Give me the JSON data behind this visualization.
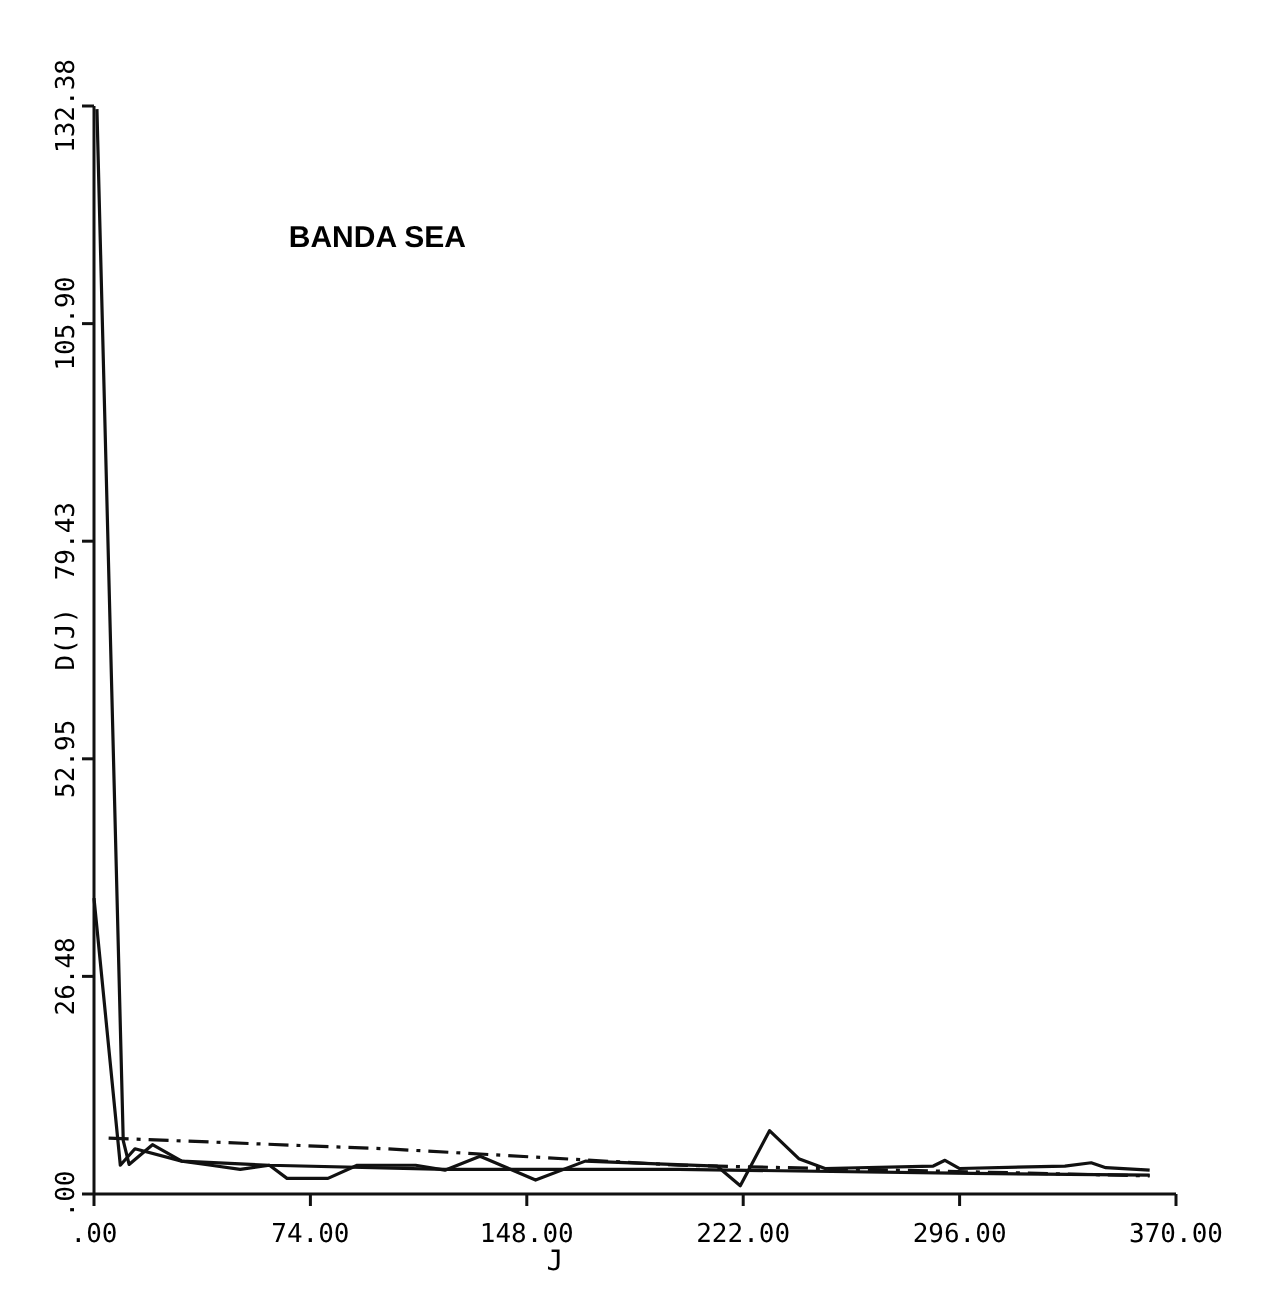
{
  "chart_data": {
    "type": "line",
    "title": "BANDA SEA",
    "xlabel": "J",
    "ylabel": "D(J)",
    "xlim": [
      0,
      370
    ],
    "ylim": [
      0,
      132.38
    ],
    "xticks": [
      {
        "value": 0,
        "label": ".00"
      },
      {
        "value": 74,
        "label": "74.00"
      },
      {
        "value": 148,
        "label": "148.00"
      },
      {
        "value": 222,
        "label": "222.00"
      },
      {
        "value": 296,
        "label": "296.00"
      },
      {
        "value": 370,
        "label": "370.00"
      }
    ],
    "yticks": [
      {
        "value": 0,
        "label": ".00"
      },
      {
        "value": 26.48,
        "label": "26.48"
      },
      {
        "value": 52.95,
        "label": "52.95"
      },
      {
        "value": 79.43,
        "label": "79.43"
      },
      {
        "value": 105.9,
        "label": "105.90"
      },
      {
        "value": 132.38,
        "label": "132.38"
      }
    ],
    "grid": false,
    "series": [
      {
        "color": "#111111",
        "line_style": "solid",
        "x": [
          1,
          10,
          12,
          20,
          30,
          40,
          50,
          60,
          66,
          80,
          90,
          110,
          120,
          132,
          151,
          168,
          213,
          221,
          231,
          241,
          250,
          287,
          291,
          296,
          332,
          341,
          346,
          361
        ],
        "values": [
          132,
          6.5,
          3.6,
          6,
          4,
          3.5,
          3,
          3.5,
          1.9,
          1.9,
          3.5,
          3.5,
          2.9,
          4.6,
          1.7,
          4,
          3.4,
          1,
          7.7,
          4.3,
          3.1,
          3.4,
          4.1,
          3.1,
          3.4,
          3.8,
          3.2,
          2.9
        ]
      },
      {
        "color": "#111111",
        "line_style": "solid",
        "x": [
          0,
          9,
          14,
          30,
          60,
          120,
          200,
          300,
          361
        ],
        "values": [
          36,
          3.5,
          5.5,
          4,
          3.5,
          3,
          3,
          2.5,
          2.3
        ]
      },
      {
        "color": "#111111",
        "line_style": "dashed",
        "x": [
          5,
          100,
          200,
          361
        ],
        "values": [
          6.8,
          5.5,
          3.5,
          2.2
        ]
      }
    ]
  }
}
